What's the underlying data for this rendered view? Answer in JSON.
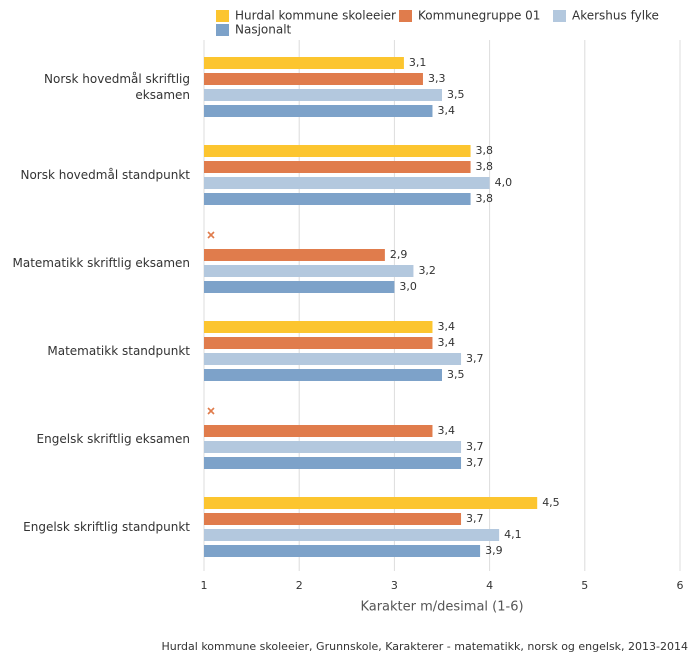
{
  "chart_data": {
    "type": "hbar",
    "categories": [
      "Norsk hovedmål skriftlig eksamen",
      "Norsk hovedmål standpunkt",
      "Matematikk skriftlig eksamen",
      "Matematikk standpunkt",
      "Engelsk skriftlig eksamen",
      "Engelsk skriftlig standpunkt"
    ],
    "series": [
      {
        "name": "Hurdal kommune skoleeier",
        "color": "#fcc52f",
        "values": [
          3.1,
          3.8,
          null,
          3.4,
          null,
          4.5
        ],
        "value_labels": [
          "3,1",
          "3,8",
          null,
          "3,4",
          null,
          "4,5"
        ]
      },
      {
        "name": "Kommunegruppe 01",
        "color": "#e07c4c",
        "values": [
          3.3,
          3.8,
          2.9,
          3.4,
          3.4,
          3.7
        ],
        "value_labels": [
          "3,3",
          "3,8",
          "2,9",
          "3,4",
          "3,4",
          "3,7"
        ]
      },
      {
        "name": "Akershus fylke",
        "color": "#b3c8de",
        "values": [
          3.5,
          4.0,
          3.2,
          3.7,
          3.7,
          4.1
        ],
        "value_labels": [
          "3,5",
          "4,0",
          "3,2",
          "3,7",
          "3,7",
          "4,1"
        ]
      },
      {
        "name": "Nasjonalt",
        "color": "#7da2c9",
        "values": [
          3.4,
          3.8,
          3.0,
          3.5,
          3.7,
          3.9
        ],
        "value_labels": [
          "3,4",
          "3,8",
          "3,0",
          "3,5",
          "3,7",
          "3,9"
        ]
      }
    ],
    "xlim": [
      1,
      6
    ],
    "xticks": [
      1,
      2,
      3,
      4,
      5,
      6
    ],
    "grid": true,
    "xlabel": "Karakter m/desimal (1-6)",
    "source": "Hurdal kommune skoleeier, Grunnskole, Karakterer - matematikk, norsk og engelsk, 2013-2014"
  }
}
